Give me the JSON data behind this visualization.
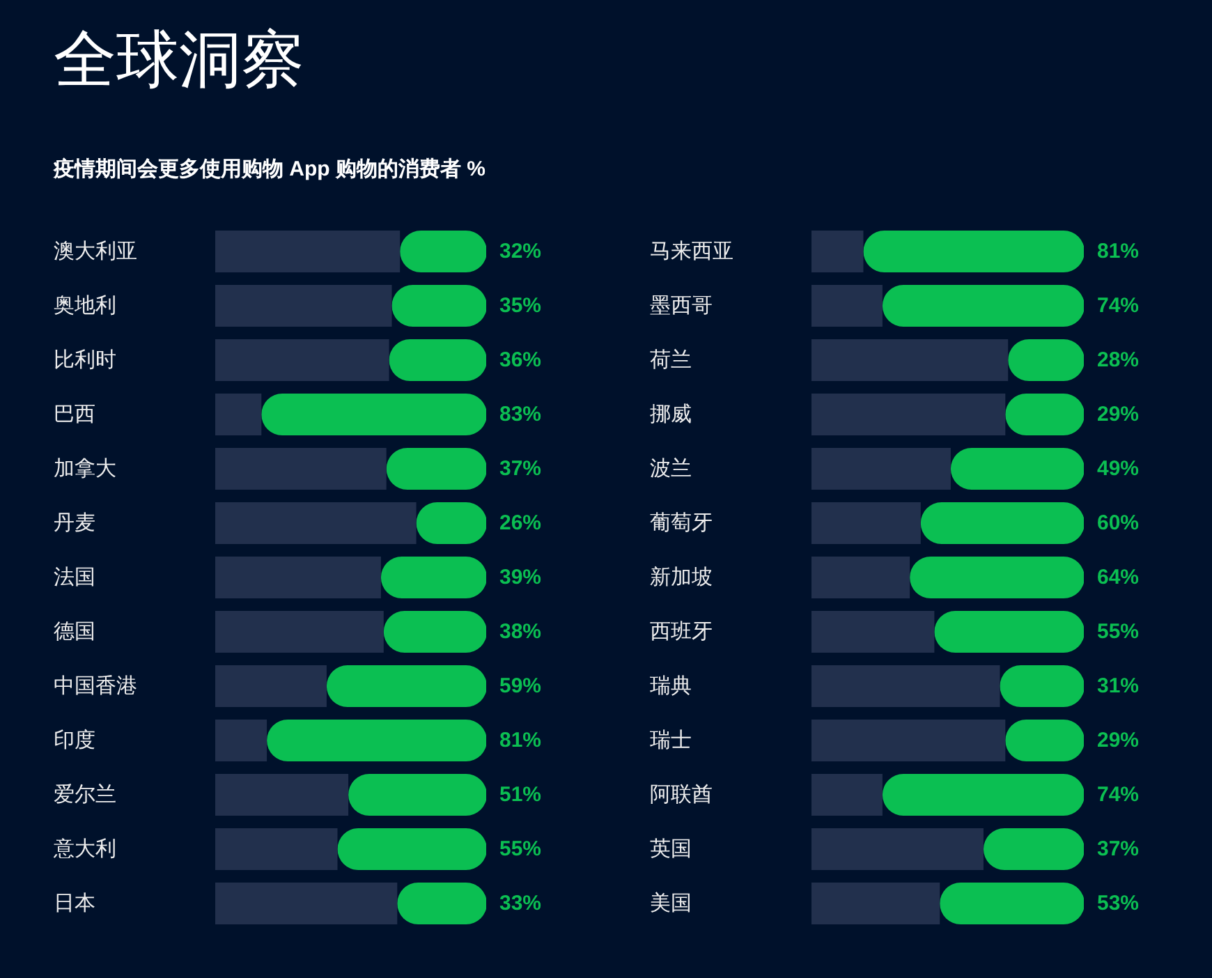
{
  "chart_data": [
    {
      "type": "bar",
      "orientation": "horizontal",
      "stacked": true,
      "title": "全球洞察",
      "subtitle": "疫情期间会更多使用购物 App 购物的消费者 %",
      "categories": [
        "澳大利亚",
        "奥地利",
        "比利时",
        "巴西",
        "加拿大",
        "丹麦",
        "法国",
        "德国",
        "中国香港",
        "印度",
        "爱尔兰",
        "意大利",
        "日本"
      ],
      "series": [
        {
          "color": "#0bbf52",
          "values": [
            32,
            35,
            36,
            83,
            37,
            26,
            39,
            38,
            59,
            81,
            51,
            55,
            33
          ],
          "value_labels": [
            "32%",
            "35%",
            "36%",
            "83%",
            "37%",
            "26%",
            "39%",
            "38%",
            "59%",
            "81%",
            "51%",
            "55%",
            "33%"
          ]
        },
        {
          "color": "#22304d",
          "values": [
            68,
            65,
            64,
            17,
            63,
            74,
            61,
            62,
            41,
            19,
            49,
            45,
            67
          ]
        }
      ],
      "xlim": [
        100,
        0
      ],
      "tick_labels": "y"
    },
    {
      "type": "bar",
      "orientation": "horizontal",
      "stacked": true,
      "categories": [
        "马来西亚",
        "墨西哥",
        "荷兰",
        "挪威",
        "波兰",
        "葡萄牙",
        "新加坡",
        "西班牙",
        "瑞典",
        "瑞士",
        "阿联酋",
        "英国",
        "美国"
      ],
      "series": [
        {
          "color": "#0bbf52",
          "values": [
            81,
            74,
            28,
            29,
            49,
            60,
            64,
            55,
            31,
            29,
            74,
            37,
            53
          ],
          "value_labels": [
            "81%",
            "74%",
            "28%",
            "29%",
            "49%",
            "60%",
            "64%",
            "55%",
            "31%",
            "29%",
            "74%",
            "37%",
            "53%"
          ]
        },
        {
          "color": "#22304d",
          "values": [
            19,
            26,
            72,
            71,
            51,
            40,
            36,
            45,
            69,
            71,
            26,
            63,
            47
          ]
        }
      ],
      "xlim": [
        100,
        0
      ],
      "tick_labels": "y"
    }
  ]
}
